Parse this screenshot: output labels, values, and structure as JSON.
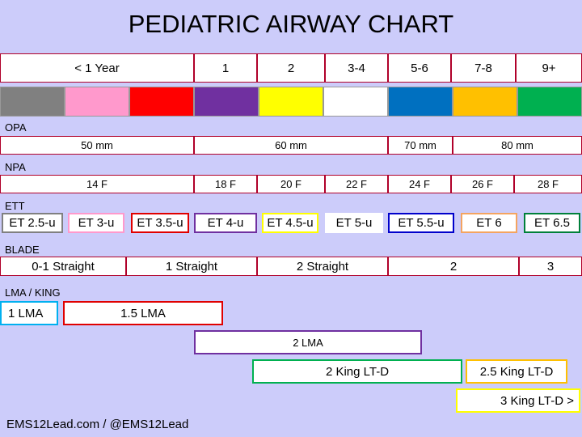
{
  "title": "PEDIATRIC AIRWAY CHART",
  "age_groups": [
    "< 1 Year",
    "1",
    "2",
    "3-4",
    "5-6",
    "7-8",
    "9+"
  ],
  "opa": {
    "label": "OPA",
    "sizes": [
      "50 mm",
      "60 mm",
      "70 mm",
      "80 mm"
    ]
  },
  "npa": {
    "label": "NPA",
    "sizes": [
      "14 F",
      "18 F",
      "20 F",
      "22 F",
      "24 F",
      "26 F",
      "28 F"
    ]
  },
  "ett": {
    "label": "ETT",
    "sizes": [
      "ET 2.5-u",
      "ET 3-u",
      "ET 3.5-u",
      "ET 4-u",
      "ET 4.5-u",
      "ET 5-u",
      "ET 5.5-u",
      "ET 6",
      "ET 6.5"
    ]
  },
  "blade": {
    "label": "BLADE",
    "sizes": [
      "0-1 Straight",
      "1 Straight",
      "2 Straight",
      "2",
      "3"
    ]
  },
  "lma_king": {
    "label": "LMA / KING",
    "sizes": [
      "1 LMA",
      "1.5 LMA",
      "2 LMA",
      "2 King LT-D",
      "2.5 King LT-D",
      "3 King LT-D >"
    ]
  },
  "footer": "EMS12Lead.com / @EMS12Lead"
}
